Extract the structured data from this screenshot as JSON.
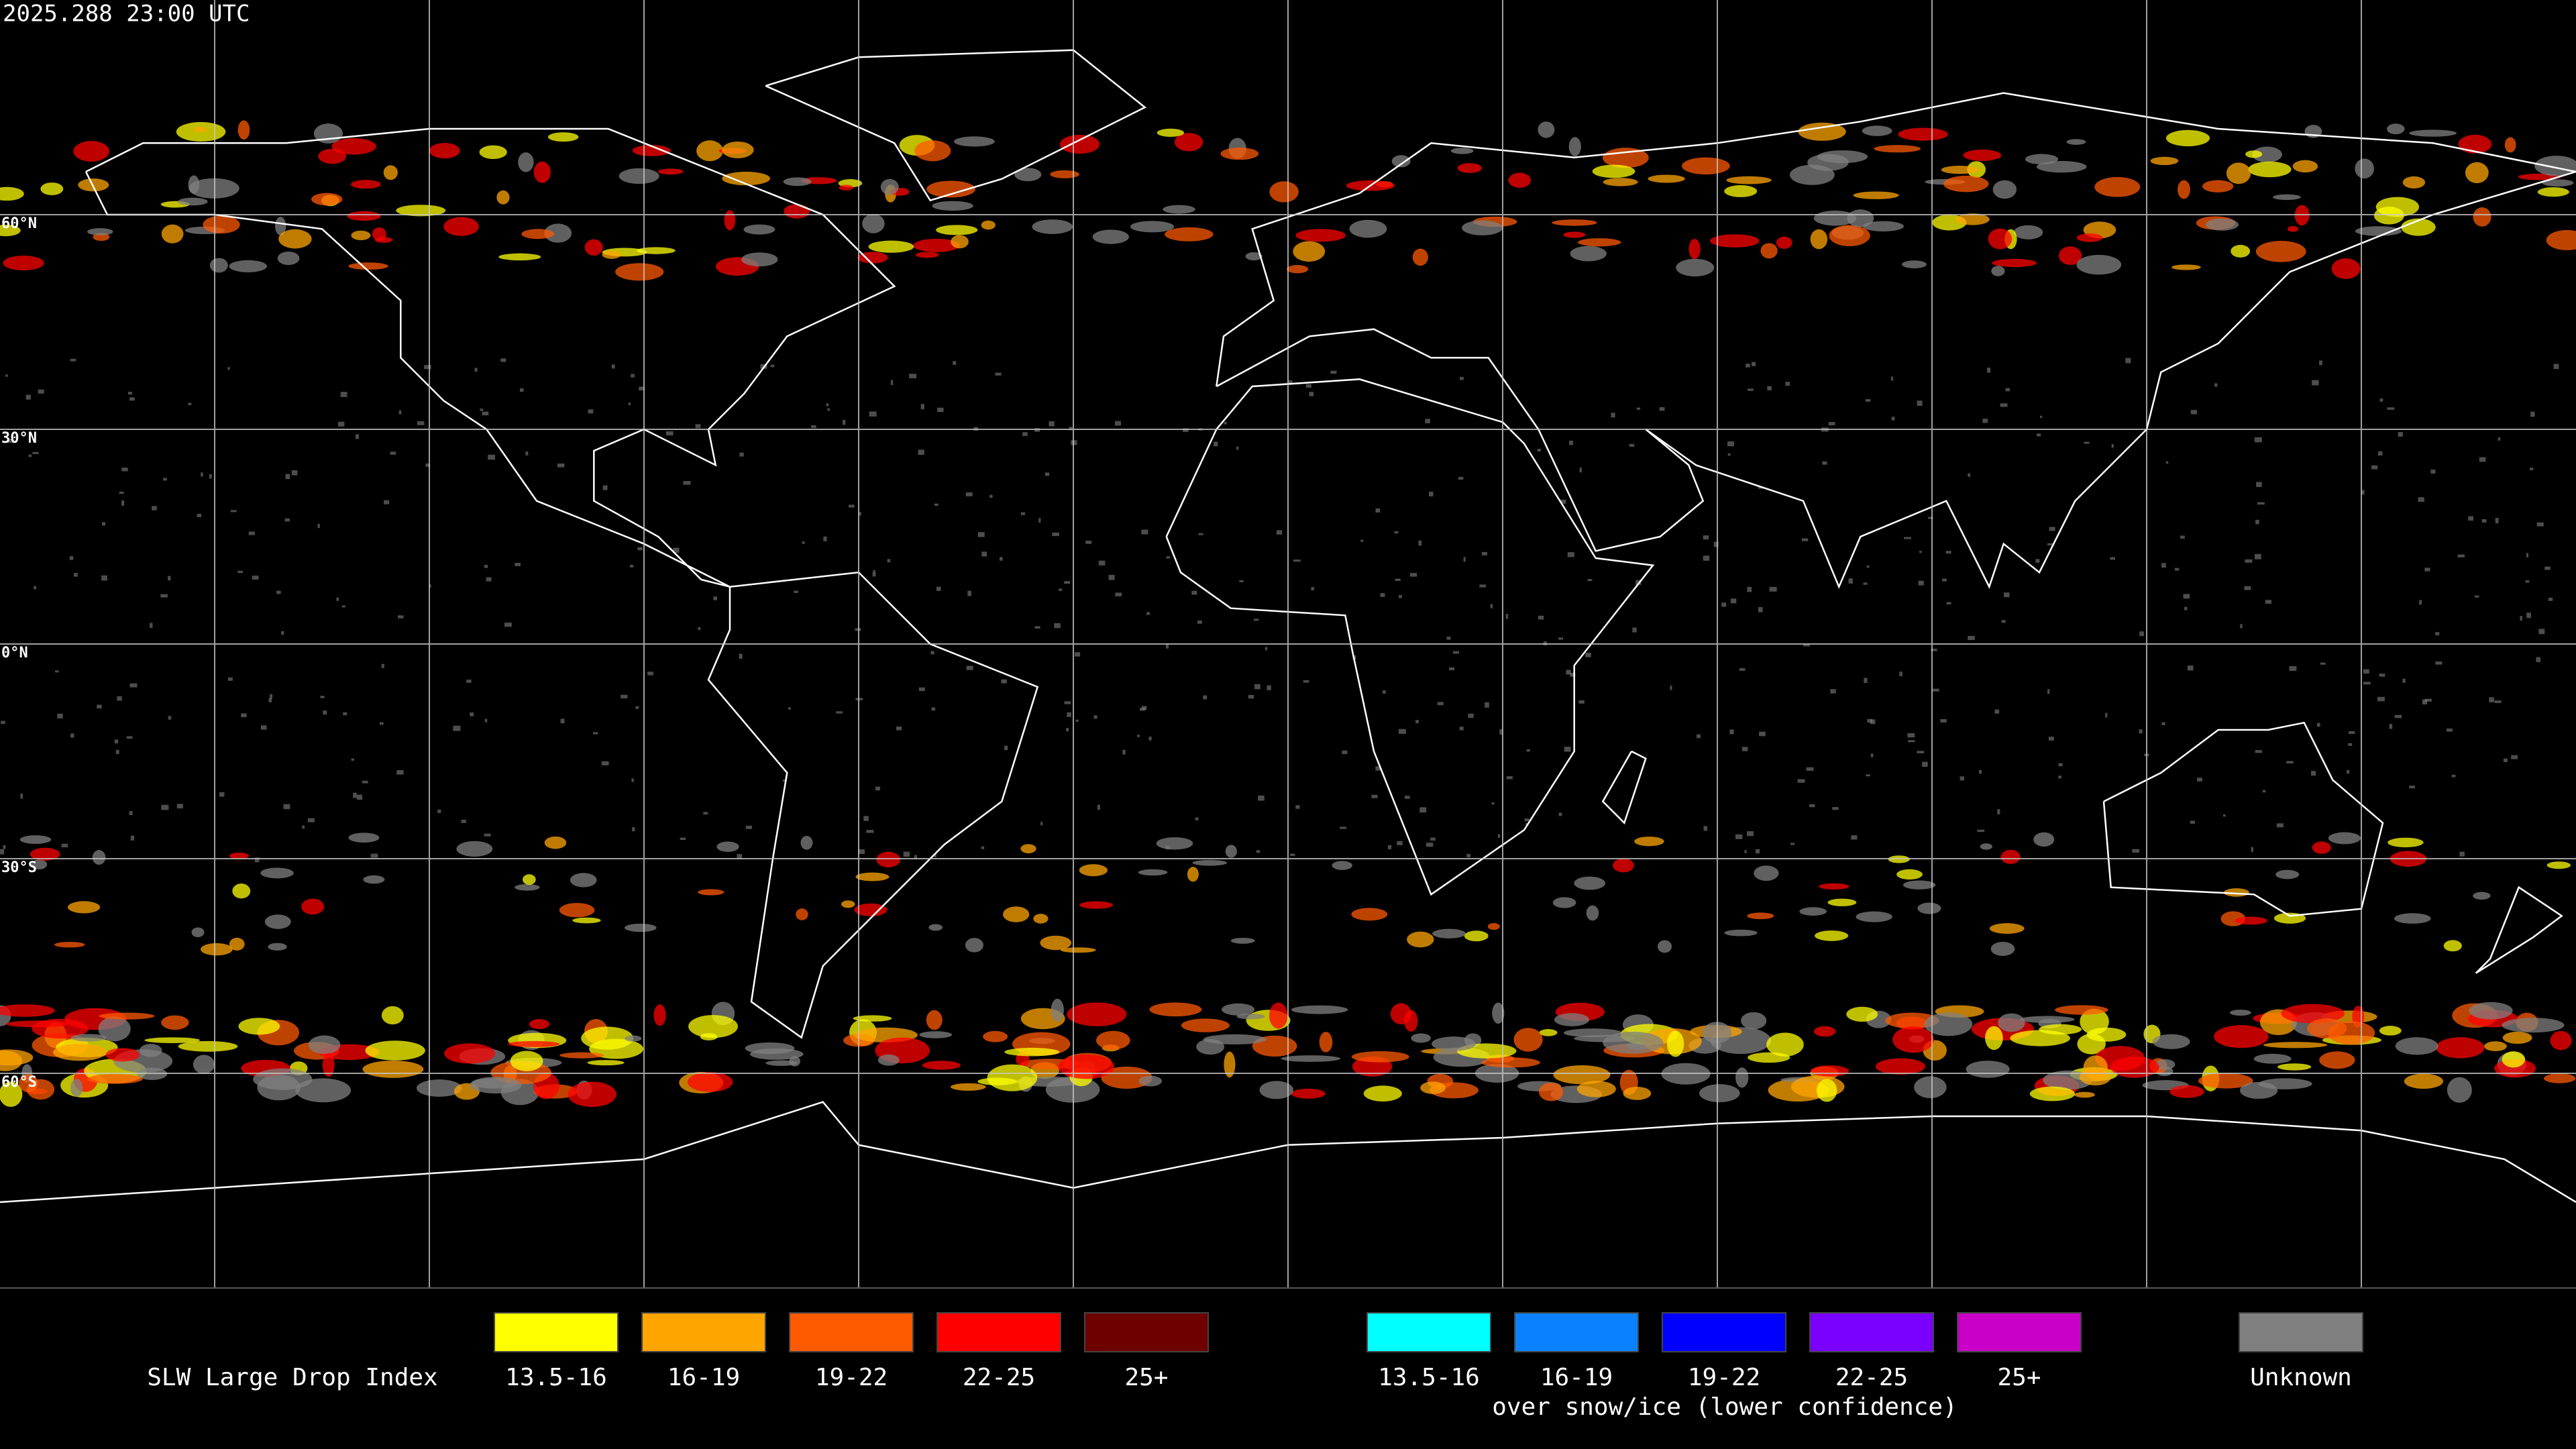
{
  "header": {
    "timestamp": "2025.288 23:00 UTC"
  },
  "map": {
    "latitude_labels": [
      "60°N",
      "30°N",
      "0°N",
      "30°S",
      "60°S"
    ]
  },
  "legend": {
    "title": "SLW Large Drop Index",
    "standard": [
      {
        "label": "13.5-16",
        "color": "#ffff00"
      },
      {
        "label": "16-19",
        "color": "#ffa500"
      },
      {
        "label": "19-22",
        "color": "#ff5a00"
      },
      {
        "label": "22-25",
        "color": "#ff0000"
      },
      {
        "label": "25+",
        "color": "#6e0000"
      }
    ],
    "snow_ice": {
      "items": [
        {
          "label": "13.5-16",
          "color": "#00ffff"
        },
        {
          "label": "16-19",
          "color": "#0a82ff"
        },
        {
          "label": "19-22",
          "color": "#0000ff"
        },
        {
          "label": "22-25",
          "color": "#7a00ff"
        },
        {
          "label": "25+",
          "color": "#c800c8"
        }
      ],
      "note": "over snow/ice (lower confidence)"
    },
    "unknown": {
      "label": "Unknown",
      "color": "#808080"
    }
  }
}
